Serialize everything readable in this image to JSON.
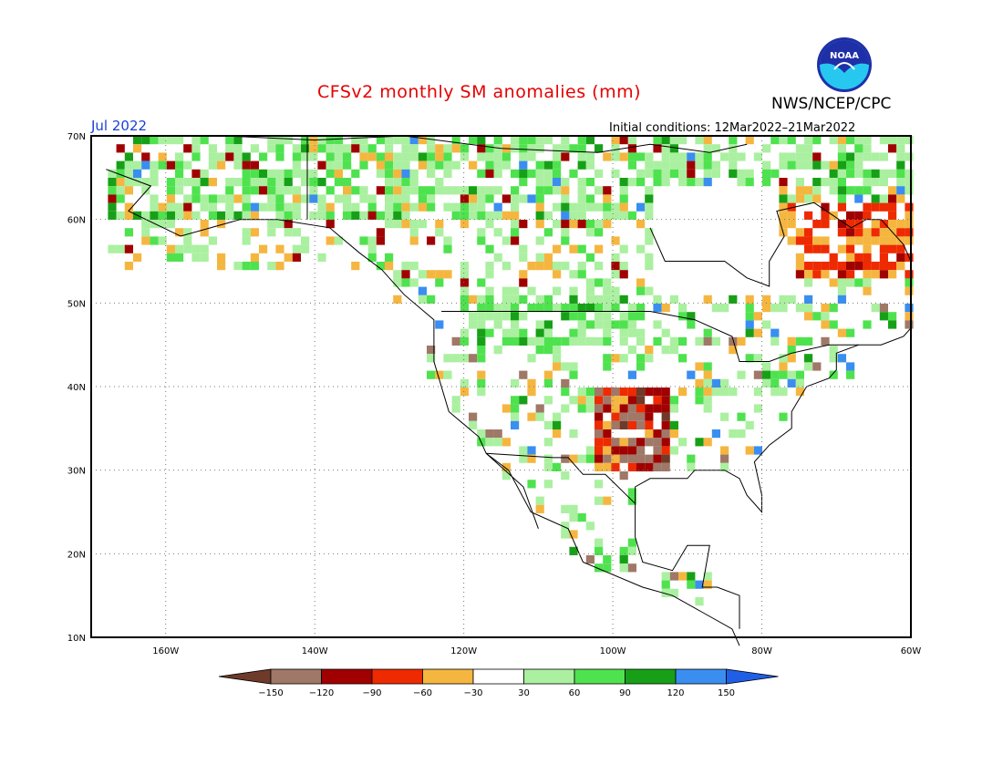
{
  "title": "CFSv2 monthly SM anomalies (mm)",
  "agency": "NWS/NCEP/CPC",
  "logo_text": "NOAA",
  "valid_month": "Jul 2022",
  "initial_conditions": "Initial conditions: 12Mar2022–21Mar2022",
  "map": {
    "lon_ticks": [
      {
        "lon": -160,
        "label": "160W"
      },
      {
        "lon": -140,
        "label": "140W"
      },
      {
        "lon": -120,
        "label": "120W"
      },
      {
        "lon": -100,
        "label": "100W"
      },
      {
        "lon": -80,
        "label": "80W"
      },
      {
        "lon": -60,
        "label": "60W"
      }
    ],
    "lat_ticks": [
      {
        "lat": 70,
        "label": "70N"
      },
      {
        "lat": 60,
        "label": "60N"
      },
      {
        "lat": 50,
        "label": "50N"
      },
      {
        "lat": 40,
        "label": "40N"
      },
      {
        "lat": 30,
        "label": "30N"
      },
      {
        "lat": 20,
        "label": "20N"
      },
      {
        "lat": 10,
        "label": "10N"
      }
    ],
    "lon_range": [
      -170,
      -60
    ],
    "lat_range": [
      10,
      70
    ],
    "grid": "dotted"
  },
  "colorbar": {
    "labels": [
      "−150",
      "−120",
      "−90",
      "−60",
      "−30",
      "30",
      "60",
      "90",
      "120",
      "150"
    ],
    "colors": [
      "#6e3a2a",
      "#a07868",
      "#a00000",
      "#ee2a00",
      "#f5b640",
      "#ffffff",
      "#aaf0a0",
      "#4fe24f",
      "#17a017",
      "#3a8ef0",
      "#1f5fe8"
    ]
  },
  "colors": {
    "title": "#e60000",
    "valid_month": "#1a3fd9",
    "map_line": "#000000"
  }
}
